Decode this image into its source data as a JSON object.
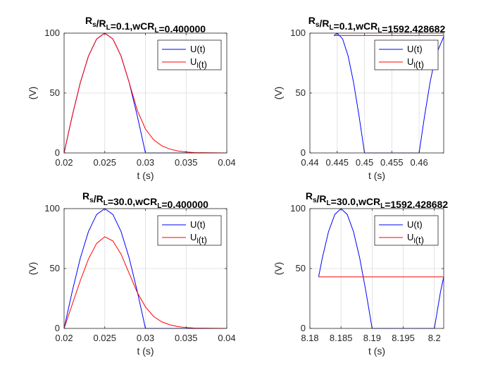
{
  "chart_data": [
    {
      "type": "line",
      "title": {
        "prefix": "R",
        "sub1": "s",
        "mid": "/R",
        "sub2": "L",
        "rest": "=0.1,wCR",
        "sub3": "L",
        "tail": "=0.400000"
      },
      "xlabel": "t (s)",
      "ylabel": "(V)",
      "xlim": [
        0.02,
        0.04
      ],
      "ylim": [
        0,
        100
      ],
      "xticks": [
        0.02,
        0.025,
        0.03,
        0.035,
        0.04
      ],
      "xtick_labels": [
        "0.02",
        "0.025",
        "0.03",
        "0.035",
        "0.04"
      ],
      "yticks": [
        0,
        50,
        100
      ],
      "ytick_labels": [
        "0",
        "50",
        "100"
      ],
      "grid": true,
      "legend": {
        "placement": "top-right",
        "entries": [
          {
            "base": "U(t)",
            "sub": ""
          },
          {
            "base": "U",
            "sub": "l",
            "suffix": "(t)"
          }
        ]
      },
      "series": [
        {
          "name": "U(t)",
          "color": "#0000ff",
          "x": [
            0.02,
            0.021,
            0.022,
            0.023,
            0.024,
            0.025,
            0.026,
            0.027,
            0.028,
            0.029,
            0.03,
            0.04
          ],
          "y": [
            0,
            30.9,
            58.8,
            80.9,
            95.1,
            100,
            95.1,
            80.9,
            58.8,
            30.9,
            0,
            0
          ]
        },
        {
          "name": "U_l(t)",
          "color": "#ff0000",
          "x": [
            0.02,
            0.021,
            0.022,
            0.023,
            0.024,
            0.025,
            0.026,
            0.027,
            0.028,
            0.029,
            0.03,
            0.031,
            0.032,
            0.033,
            0.034,
            0.035,
            0.036,
            0.04
          ],
          "y": [
            0,
            30.9,
            58.8,
            80.9,
            95.1,
            100,
            95.1,
            80.9,
            58.8,
            35.5,
            20,
            11,
            6,
            3.2,
            1.6,
            0.8,
            0.3,
            0
          ]
        }
      ]
    },
    {
      "type": "line",
      "title": {
        "prefix": "R",
        "sub1": "s",
        "mid": "/R",
        "sub2": "L",
        "rest": "=0.1,wCR",
        "sub3": "L",
        "tail": "=1592.428682"
      },
      "xlabel": "t (s)",
      "ylabel": "(V)",
      "xlim": [
        0.44,
        0.4645
      ],
      "ylim": [
        0,
        100
      ],
      "xticks": [
        0.44,
        0.445,
        0.45,
        0.455,
        0.46
      ],
      "xtick_labels": [
        "0.44",
        "0.445",
        "0.45",
        "0.455",
        "0.46"
      ],
      "yticks": [
        0,
        50,
        100
      ],
      "ytick_labels": [
        "0",
        "50",
        "100"
      ],
      "grid": true,
      "legend": {
        "placement": "top-right",
        "entries": [
          {
            "base": "U(t)",
            "sub": ""
          },
          {
            "base": "U",
            "sub": "l",
            "suffix": "(t)"
          }
        ]
      },
      "series": [
        {
          "name": "U(t)",
          "color": "#0000ff",
          "x": [
            0.4444,
            0.445,
            0.446,
            0.447,
            0.448,
            0.449,
            0.45,
            0.46,
            0.461,
            0.462,
            0.463,
            0.4645
          ],
          "y": [
            98,
            100,
            95.1,
            80.9,
            58.8,
            30.9,
            0,
            0,
            30.9,
            58.8,
            80.9,
            97
          ]
        },
        {
          "name": "U_l(t)",
          "color": "#ff0000",
          "x": [
            0.4444,
            0.4645
          ],
          "y": [
            98,
            98
          ]
        }
      ]
    },
    {
      "type": "line",
      "title": {
        "prefix": "R",
        "sub1": "s",
        "mid": "/R",
        "sub2": "L",
        "rest": "=30.0,wCR",
        "sub3": "L",
        "tail": "=0.400000"
      },
      "xlabel": "t (s)",
      "ylabel": "(V)",
      "xlim": [
        0.02,
        0.04
      ],
      "ylim": [
        0,
        100
      ],
      "xticks": [
        0.02,
        0.025,
        0.03,
        0.035,
        0.04
      ],
      "xtick_labels": [
        "0.02",
        "0.025",
        "0.03",
        "0.035",
        "0.04"
      ],
      "yticks": [
        0,
        50,
        100
      ],
      "ytick_labels": [
        "0",
        "50",
        "100"
      ],
      "grid": true,
      "legend": {
        "placement": "top-right",
        "entries": [
          {
            "base": "U(t)",
            "sub": ""
          },
          {
            "base": "U",
            "sub": "l",
            "suffix": "(t)"
          }
        ]
      },
      "series": [
        {
          "name": "U(t)",
          "color": "#0000ff",
          "x": [
            0.02,
            0.021,
            0.022,
            0.023,
            0.024,
            0.025,
            0.026,
            0.027,
            0.028,
            0.029,
            0.03,
            0.04
          ],
          "y": [
            0,
            30.9,
            58.8,
            80.9,
            95.1,
            100,
            95.1,
            80.9,
            58.8,
            30.9,
            0,
            0
          ]
        },
        {
          "name": "U_l(t)",
          "color": "#ff0000",
          "x": [
            0.02,
            0.021,
            0.022,
            0.023,
            0.024,
            0.025,
            0.026,
            0.027,
            0.028,
            0.029,
            0.03,
            0.031,
            0.032,
            0.033,
            0.034,
            0.035,
            0.036,
            0.04
          ],
          "y": [
            0,
            20,
            40,
            58,
            71,
            76.5,
            73,
            62,
            46,
            30,
            18,
            10,
            5.5,
            3,
            1.5,
            0.7,
            0.3,
            0
          ]
        }
      ]
    },
    {
      "type": "line",
      "title": {
        "prefix": "R",
        "sub1": "s",
        "mid": "/R",
        "sub2": "L",
        "rest": "=30.0,wCR",
        "sub3": "L",
        "tail": "=1592.428682"
      },
      "xlabel": "t (s)",
      "ylabel": "(V)",
      "xlim": [
        8.18,
        8.2015
      ],
      "ylim": [
        0,
        100
      ],
      "xticks": [
        8.18,
        8.185,
        8.19,
        8.195,
        8.2
      ],
      "xtick_labels": [
        "8.18",
        "8.185",
        "8.19",
        "8.195",
        "8.2"
      ],
      "yticks": [
        0,
        50,
        100
      ],
      "ytick_labels": [
        "0",
        "50",
        "100"
      ],
      "grid": true,
      "legend": {
        "placement": "top-right",
        "entries": [
          {
            "base": "U(t)",
            "sub": ""
          },
          {
            "base": "U",
            "sub": "l",
            "suffix": "(t)"
          }
        ]
      },
      "series": [
        {
          "name": "U(t)",
          "color": "#0000ff",
          "x": [
            8.1814,
            8.182,
            8.183,
            8.184,
            8.185,
            8.186,
            8.187,
            8.188,
            8.189,
            8.19,
            8.2,
            8.201,
            8.2015
          ],
          "y": [
            43,
            58.8,
            80.9,
            95.1,
            100,
            95.1,
            80.9,
            58.8,
            30.9,
            0,
            0,
            30.9,
            43
          ]
        },
        {
          "name": "U_l(t)",
          "color": "#ff0000",
          "x": [
            8.1814,
            8.2015
          ],
          "y": [
            43,
            43
          ]
        }
      ]
    }
  ]
}
